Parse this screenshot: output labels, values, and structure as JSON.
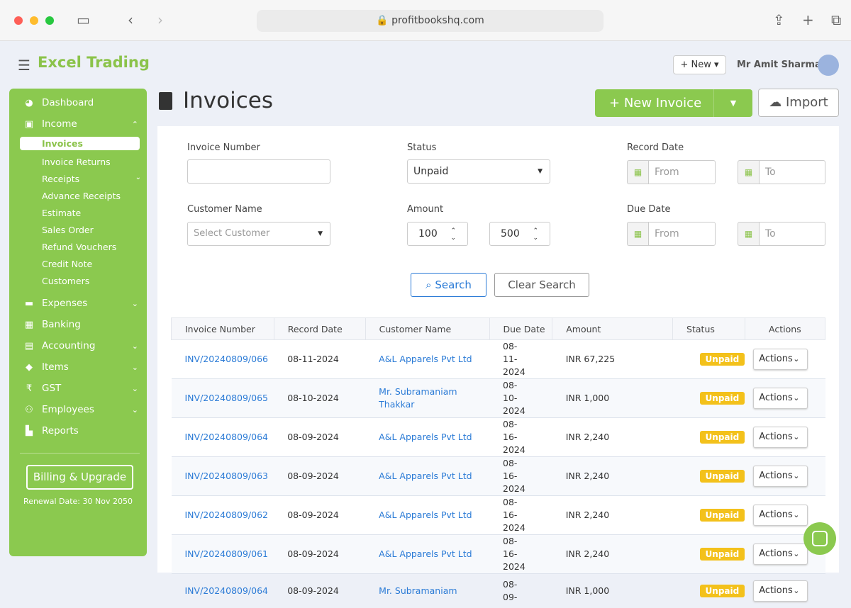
{
  "browser": {
    "url": "profitbookshq.com"
  },
  "header": {
    "brand": "Excel Trading",
    "new_label": "+ New ▾",
    "user": "Mr Amit Sharma"
  },
  "sidebar": {
    "items": [
      {
        "label": "Dashboard",
        "icon": "pie-chart-icon"
      },
      {
        "label": "Income",
        "icon": "money-icon"
      },
      {
        "label": "Expenses",
        "icon": "card-icon"
      },
      {
        "label": "Banking",
        "icon": "bank-icon"
      },
      {
        "label": "Accounting",
        "icon": "book-icon"
      },
      {
        "label": "Items",
        "icon": "tag-icon"
      },
      {
        "label": "GST",
        "icon": "rupee-icon"
      },
      {
        "label": "Employees",
        "icon": "users-icon"
      },
      {
        "label": "Reports",
        "icon": "chart-icon"
      }
    ],
    "income_sub": [
      "Invoices",
      "Invoice Returns",
      "Receipts",
      "Advance Receipts",
      "Estimate",
      "Sales Order",
      "Refund Vouchers",
      "Credit Note",
      "Customers"
    ],
    "billing": "Billing & Upgrade",
    "renewal": "Renewal Date: 30 Nov 2050"
  },
  "page": {
    "title": "Invoices",
    "new_invoice": "New Invoice",
    "import": "Import"
  },
  "filters": {
    "invoice_number": {
      "label": "Invoice Number",
      "value": ""
    },
    "status": {
      "label": "Status",
      "value": "Unpaid"
    },
    "record_date": {
      "label": "Record Date",
      "from": "From",
      "to": "To"
    },
    "customer": {
      "label": "Customer Name",
      "placeholder": "Select Customer"
    },
    "amount": {
      "label": "Amount",
      "min": "100",
      "max": "500"
    },
    "due_date": {
      "label": "Due Date",
      "from": "From",
      "to": "To"
    },
    "search": "Search",
    "clear": "Clear Search"
  },
  "table": {
    "headers": [
      "Invoice Number",
      "Record Date",
      "Customer Name",
      "Due Date",
      "Amount",
      "Status",
      "Actions"
    ],
    "rows": [
      [
        "INV/20240809/066",
        "08-11-2024",
        "A&L Apparels Pvt Ltd",
        "08-11-2024",
        "INR 67,225",
        "Unpaid",
        "Actions"
      ],
      [
        "INV/20240809/065",
        "08-10-2024",
        "Mr. Subramaniam Thakkar",
        "08-10-2024",
        "INR 1,000",
        "Unpaid",
        "Actions"
      ],
      [
        "INV/20240809/064",
        "08-09-2024",
        "A&L Apparels Pvt Ltd",
        "08-16-2024",
        "INR 2,240",
        "Unpaid",
        "Actions"
      ],
      [
        "INV/20240809/063",
        "08-09-2024",
        "A&L Apparels Pvt Ltd",
        "08-16-2024",
        "INR 2,240",
        "Unpaid",
        "Actions"
      ],
      [
        "INV/20240809/062",
        "08-09-2024",
        "A&L Apparels Pvt Ltd",
        "08-16-2024",
        "INR 2,240",
        "Unpaid",
        "Actions"
      ],
      [
        "INV/20240809/061",
        "08-09-2024",
        "A&L Apparels Pvt Ltd",
        "08-16-2024",
        "INR 2,240",
        "Unpaid",
        "Actions"
      ],
      [
        "INV/20240809/064",
        "08-09-2024",
        "Mr. Subramaniam",
        "08-09-",
        "INR 1,000",
        "Unpaid",
        "Actions"
      ]
    ]
  },
  "colors": {
    "brand": "#8bc94f",
    "link": "#2b7bd6",
    "unpaid": "#f3c11b"
  }
}
